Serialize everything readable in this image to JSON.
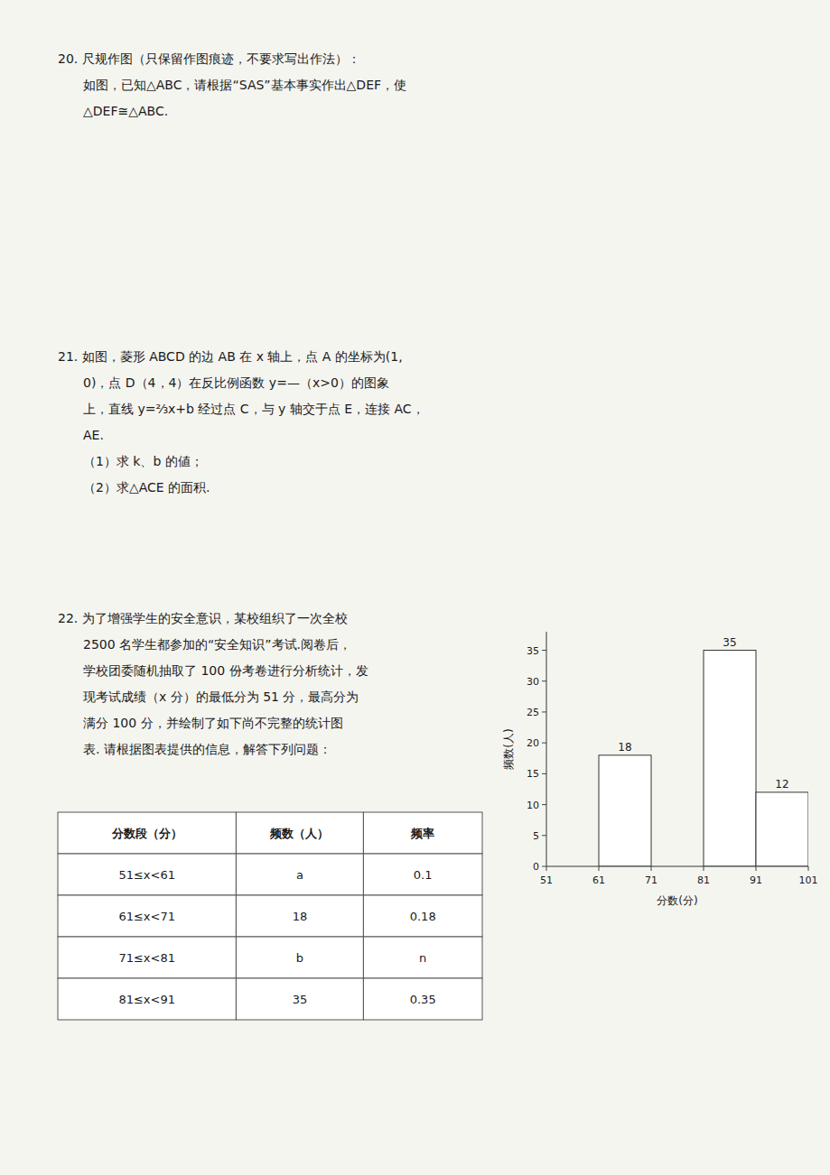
{
  "chart_data": [
    {
      "type": "histogram",
      "annotations": [
        "20. 尺规作图（只保留作图痕迹，不要求写出作法）：",
        "如图，已知△ABC，请根据“SAS”基本事实作出△DEF，使",
        "△DEF≅△ABC.",
        "21. 如图，菱形 ABCD 的边 AB 在 x 轴上，点 A 的坐标为(1,",
        "0)，点 D（4，4）在反比例函数 y=—（x>0）的图象",
        "上，直线 y=²⁄₃x+b 经过点 C，与 y 轴交于点 E，连接 AC，",
        "AE.",
        "（1）求 k、b 的値；",
        "（2）求△ACE 的面积.",
        "22. 为了增强学生的安全意识，某校组织了一次全校",
        "2500 名学生都参加的“安全知识”考试.阅卷后，",
        "学校团委随机抽取了 100 份考卷进行分析统计，发",
        "现考试成绩（x 分）的最低分为 51 分，最高分为",
        "满分 100 分，并绘制了如下尚不完整的统计图",
        "表. 请根据图表提供的信息，解答下列问题："
      ],
      "x_label": "分数(分)",
      "y_label": "频数(人)",
      "bins": [
        51,
        61,
        71,
        81,
        91,
        101
      ],
      "values": [
        null,
        18,
        null,
        35,
        12
      ],
      "xlim": [
        51,
        101
      ],
      "ylim": [
        0,
        38
      ],
      "yticks": [
        0,
        5,
        10,
        15,
        20,
        25,
        30,
        35
      ],
      "grid": false,
      "data_labels": true
    },
    {
      "type": "table",
      "columns": [
        "分数段（分）",
        "频数（人）",
        "频率"
      ],
      "rows": [
        [
          "51≤x<61",
          "a",
          "0.1"
        ],
        [
          "61≤x<71",
          "18",
          "0.18"
        ],
        [
          "71≤x<81",
          "b",
          "n"
        ],
        [
          "81≤x<91",
          "35",
          "0.35"
        ]
      ]
    }
  ]
}
